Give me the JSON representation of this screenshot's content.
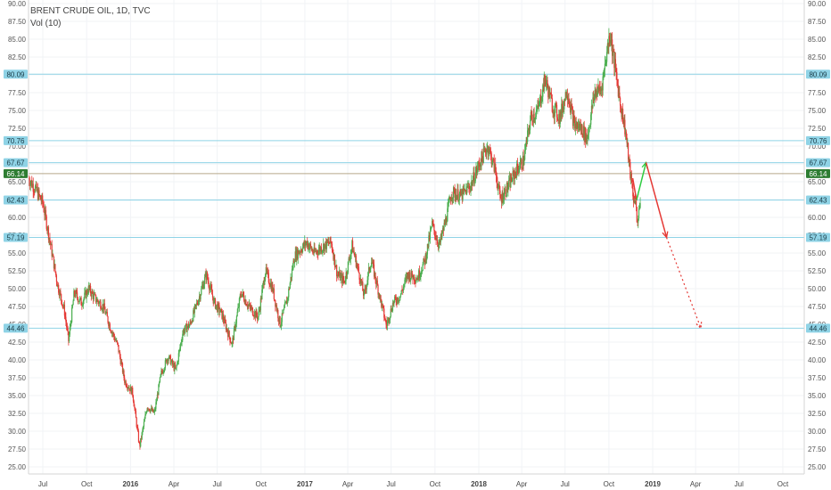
{
  "header": {
    "symbol": "BRENT CRUDE OIL, 1D, TVC",
    "volume": "Vol (10)"
  },
  "chart_data": {
    "type": "candlestick",
    "ylim": [
      25,
      90
    ],
    "yticks": [
      25,
      27.5,
      30,
      32.5,
      35,
      37.5,
      40,
      42.5,
      45,
      47.5,
      50,
      52.5,
      55,
      57.5,
      60,
      62.5,
      65,
      67.5,
      70,
      72.5,
      75,
      77.5,
      80,
      82.5,
      85,
      87.5,
      90
    ],
    "xticks": [
      "Jul",
      "Oct",
      "2016",
      "Apr",
      "Jul",
      "Oct",
      "2017",
      "Apr",
      "Jul",
      "Oct",
      "2018",
      "Apr",
      "Jul",
      "Oct",
      "2019",
      "Apr",
      "Jul",
      "Oct"
    ],
    "bold_xticks": [
      "2016",
      "2017",
      "2018",
      "2019"
    ],
    "x_range": [
      "2015-06-01",
      "2019-11-15"
    ],
    "levels": [
      {
        "label": "80.09",
        "value": 80.09
      },
      {
        "label": "70.76",
        "value": 70.76
      },
      {
        "label": "67.67",
        "value": 67.67
      },
      {
        "label": "62.43",
        "value": 62.43
      },
      {
        "label": "57.19",
        "value": 57.19
      },
      {
        "label": "44.46",
        "value": 44.46
      }
    ],
    "last_price": {
      "label": "66.14",
      "value": 66.14
    },
    "price_path": [
      [
        "2015-06-01",
        65.5
      ],
      [
        "2015-06-15",
        64.0
      ],
      [
        "2015-07-01",
        62.0
      ],
      [
        "2015-07-15",
        57.0
      ],
      [
        "2015-08-01",
        50.5
      ],
      [
        "2015-08-15",
        47.0
      ],
      [
        "2015-08-24",
        42.7
      ],
      [
        "2015-09-05",
        49.5
      ],
      [
        "2015-09-20",
        48.0
      ],
      [
        "2015-10-05",
        50.0
      ],
      [
        "2015-10-20",
        48.5
      ],
      [
        "2015-11-05",
        47.5
      ],
      [
        "2015-11-20",
        44.5
      ],
      [
        "2015-12-05",
        42.0
      ],
      [
        "2015-12-20",
        37.0
      ],
      [
        "2016-01-05",
        35.5
      ],
      [
        "2016-01-20",
        27.8
      ],
      [
        "2016-02-05",
        33.5
      ],
      [
        "2016-02-20",
        32.5
      ],
      [
        "2016-03-05",
        38.0
      ],
      [
        "2016-03-20",
        40.5
      ],
      [
        "2016-04-05",
        38.5
      ],
      [
        "2016-04-20",
        44.0
      ],
      [
        "2016-05-05",
        45.0
      ],
      [
        "2016-05-20",
        48.0
      ],
      [
        "2016-06-08",
        52.0
      ],
      [
        "2016-06-25",
        48.0
      ],
      [
        "2016-07-10",
        46.5
      ],
      [
        "2016-08-01",
        42.2
      ],
      [
        "2016-08-20",
        49.5
      ],
      [
        "2016-09-05",
        47.5
      ],
      [
        "2016-09-25",
        46.0
      ],
      [
        "2016-10-10",
        52.5
      ],
      [
        "2016-10-25",
        50.0
      ],
      [
        "2016-11-10",
        45.0
      ],
      [
        "2016-11-25",
        48.5
      ],
      [
        "2016-12-10",
        54.5
      ],
      [
        "2017-01-05",
        56.5
      ],
      [
        "2017-01-20",
        55.0
      ],
      [
        "2017-02-10",
        56.0
      ],
      [
        "2017-02-25",
        56.5
      ],
      [
        "2017-03-10",
        52.0
      ],
      [
        "2017-03-25",
        51.0
      ],
      [
        "2017-04-10",
        56.0
      ],
      [
        "2017-04-25",
        52.0
      ],
      [
        "2017-05-05",
        49.0
      ],
      [
        "2017-05-20",
        54.0
      ],
      [
        "2017-06-05",
        49.5
      ],
      [
        "2017-06-21",
        44.8
      ],
      [
        "2017-07-05",
        48.0
      ],
      [
        "2017-07-20",
        49.0
      ],
      [
        "2017-08-05",
        52.0
      ],
      [
        "2017-08-25",
        51.5
      ],
      [
        "2017-09-10",
        54.0
      ],
      [
        "2017-09-25",
        59.0
      ],
      [
        "2017-10-10",
        56.0
      ],
      [
        "2017-10-25",
        60.0
      ],
      [
        "2017-11-05",
        63.5
      ],
      [
        "2017-11-25",
        63.0
      ],
      [
        "2017-12-15",
        64.5
      ],
      [
        "2018-01-05",
        68.0
      ],
      [
        "2018-01-20",
        70.0
      ],
      [
        "2018-02-05",
        66.5
      ],
      [
        "2018-02-15",
        62.5
      ],
      [
        "2018-03-05",
        64.5
      ],
      [
        "2018-03-20",
        66.5
      ],
      [
        "2018-04-05",
        68.0
      ],
      [
        "2018-04-20",
        74.0
      ],
      [
        "2018-05-05",
        75.0
      ],
      [
        "2018-05-20",
        79.5
      ],
      [
        "2018-06-05",
        75.5
      ],
      [
        "2018-06-20",
        74.0
      ],
      [
        "2018-07-05",
        78.0
      ],
      [
        "2018-07-20",
        73.0
      ],
      [
        "2018-08-05",
        72.5
      ],
      [
        "2018-08-16",
        71.0
      ],
      [
        "2018-09-01",
        77.5
      ],
      [
        "2018-09-15",
        78.0
      ],
      [
        "2018-10-03",
        86.0
      ],
      [
        "2018-10-15",
        80.5
      ],
      [
        "2018-10-25",
        76.0
      ],
      [
        "2018-11-05",
        72.0
      ],
      [
        "2018-11-15",
        66.0
      ],
      [
        "2018-11-23",
        62.0
      ],
      [
        "2018-11-26",
        63.0
      ],
      [
        "2018-11-29",
        58.5
      ],
      [
        "2018-12-03",
        61.5
      ],
      [
        "2018-12-07",
        61.0
      ]
    ],
    "projection": [
      {
        "from": [
          "2018-11-20",
          65.5
        ],
        "to": [
          "2018-11-28",
          62.43
        ],
        "color": "#e53935",
        "dashed": false
      },
      {
        "from": [
          "2018-11-28",
          62.43
        ],
        "to": [
          "2018-12-18",
          67.7
        ],
        "color": "#2ecc40",
        "dashed": false
      },
      {
        "from": [
          "2018-12-18",
          67.7
        ],
        "to": [
          "2019-01-30",
          57.19
        ],
        "color": "#e53935",
        "dashed": false
      },
      {
        "from": [
          "2019-01-30",
          57.19
        ],
        "to": [
          "2019-04-12",
          44.46
        ],
        "color": "#e53935",
        "dashed": true
      }
    ]
  }
}
